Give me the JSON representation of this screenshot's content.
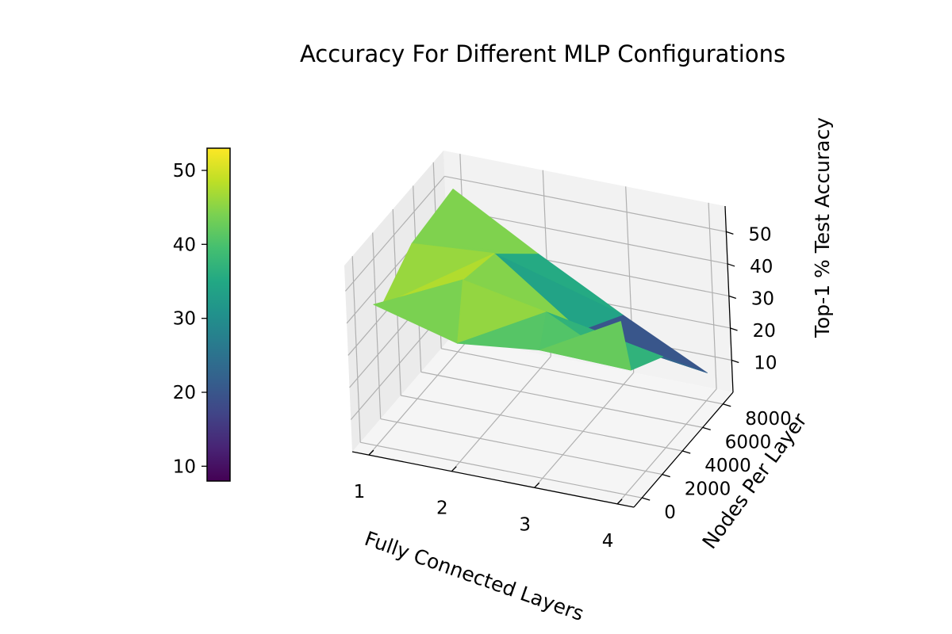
{
  "chart_data": {
    "type": "surface",
    "title": "Accuracy For Different MLP Configurations",
    "xlabel": "Fully Connected Layers",
    "ylabel": "Nodes Per Layer",
    "zlabel": "Top-1 % Test Accuracy",
    "x": [
      1,
      2,
      3,
      4
    ],
    "y": [
      256,
      1024,
      4096,
      8192
    ],
    "z": [
      [
        43,
        36,
        39,
        53
      ],
      [
        40,
        53,
        48,
        35
      ],
      [
        48,
        50,
        31,
        28
      ],
      [
        50,
        35,
        21,
        8
      ]
    ],
    "xlim": [
      0.8,
      4.2
    ],
    "ylim": [
      -800,
      9000
    ],
    "zlim": [
      0,
      58
    ],
    "x_ticks": [
      "1",
      "2",
      "3",
      "4"
    ],
    "y_ticks": [
      "0",
      "2000",
      "4000",
      "6000",
      "8000"
    ],
    "z_ticks": [
      "10",
      "20",
      "30",
      "40",
      "50"
    ],
    "colormap": "viridis",
    "colorbar": {
      "range": [
        8,
        53
      ],
      "ticks": [
        "10",
        "20",
        "30",
        "40",
        "50"
      ],
      "placement": "left"
    },
    "grid": true
  }
}
